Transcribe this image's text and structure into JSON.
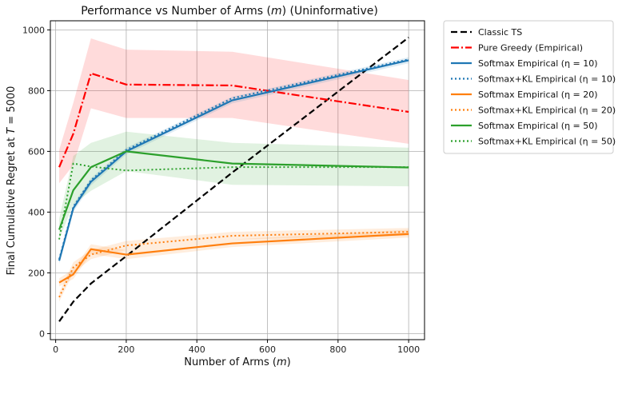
{
  "chart_data": {
    "type": "line",
    "title": "Performance vs Number of Arms (m) (Uninformative)",
    "xlabel": "Number of Arms (m)",
    "ylabel": "Final Cumulative Regret at T = 5000",
    "xlim": [
      -15,
      1045
    ],
    "ylim": [
      -20,
      1030
    ],
    "xticks": [
      0,
      200,
      400,
      600,
      800,
      1000
    ],
    "yticks": [
      0,
      200,
      400,
      600,
      800,
      1000
    ],
    "grid": true,
    "legend_position": "outside-right",
    "series": [
      {
        "name": "Classic TS",
        "color": "#000000",
        "dash": "8,4",
        "x": [
          10,
          50,
          100,
          200,
          500,
          1000
        ],
        "y": [
          40,
          105,
          165,
          255,
          530,
          975
        ],
        "band": []
      },
      {
        "name": "Pure Greedy (Empirical)",
        "color": "#ff0000",
        "dash": "10,3,2,3",
        "x": [
          10,
          50,
          100,
          200,
          500,
          1000
        ],
        "y": [
          548,
          658,
          857,
          820,
          817,
          730
        ],
        "band": [
          [
            495,
            605
          ],
          [
            555,
            760
          ],
          [
            742,
            972
          ],
          [
            710,
            935
          ],
          [
            710,
            928
          ],
          [
            625,
            835
          ]
        ]
      },
      {
        "name": "Softmax Empirical (η = 10)",
        "color": "#1f77b4",
        "dash": "",
        "x": [
          10,
          50,
          100,
          200,
          500,
          1000
        ],
        "y": [
          240,
          413,
          500,
          600,
          768,
          900
        ],
        "band": [
          [
            230,
            250
          ],
          [
            400,
            426
          ],
          [
            488,
            512
          ],
          [
            590,
            612
          ],
          [
            758,
            780
          ],
          [
            890,
            910
          ]
        ]
      },
      {
        "name": "Softmax+KL Empirical (η = 10)",
        "color": "#1f77b4",
        "dash": "2,3",
        "x": [
          10,
          50,
          100,
          200,
          500,
          1000
        ],
        "y": [
          245,
          418,
          505,
          605,
          775,
          903
        ],
        "band": []
      },
      {
        "name": "Softmax Empirical (η = 20)",
        "color": "#ff7f0e",
        "dash": "",
        "x": [
          10,
          50,
          100,
          200,
          500,
          1000
        ],
        "y": [
          168,
          195,
          278,
          260,
          297,
          328
        ],
        "band": [
          [
            155,
            182
          ],
          [
            180,
            212
          ],
          [
            262,
            294
          ],
          [
            245,
            275
          ],
          [
            285,
            310
          ],
          [
            316,
            342
          ]
        ]
      },
      {
        "name": "Softmax+KL Empirical (η = 20)",
        "color": "#ff7f0e",
        "dash": "2,3",
        "x": [
          10,
          50,
          100,
          200,
          500,
          1000
        ],
        "y": [
          120,
          218,
          260,
          290,
          322,
          335
        ],
        "band": [
          [
            105,
            135
          ],
          [
            200,
            235
          ],
          [
            245,
            275
          ],
          [
            275,
            305
          ],
          [
            310,
            335
          ],
          [
            322,
            348
          ]
        ]
      },
      {
        "name": "Softmax Empirical (η = 50)",
        "color": "#2ca02c",
        "dash": "",
        "x": [
          10,
          50,
          100,
          200,
          500,
          1000
        ],
        "y": [
          342,
          472,
          548,
          600,
          560,
          547
        ],
        "band": [
          [
            310,
            378
          ],
          [
            425,
            585
          ],
          [
            470,
            628
          ],
          [
            535,
            665
          ],
          [
            490,
            628
          ],
          [
            485,
            612
          ]
        ]
      },
      {
        "name": "Softmax+KL Empirical (η = 50)",
        "color": "#2ca02c",
        "dash": "2,3",
        "x": [
          10,
          50,
          100,
          200,
          500,
          1000
        ],
        "y": [
          310,
          560,
          550,
          537,
          548,
          548
        ],
        "band": []
      }
    ]
  }
}
